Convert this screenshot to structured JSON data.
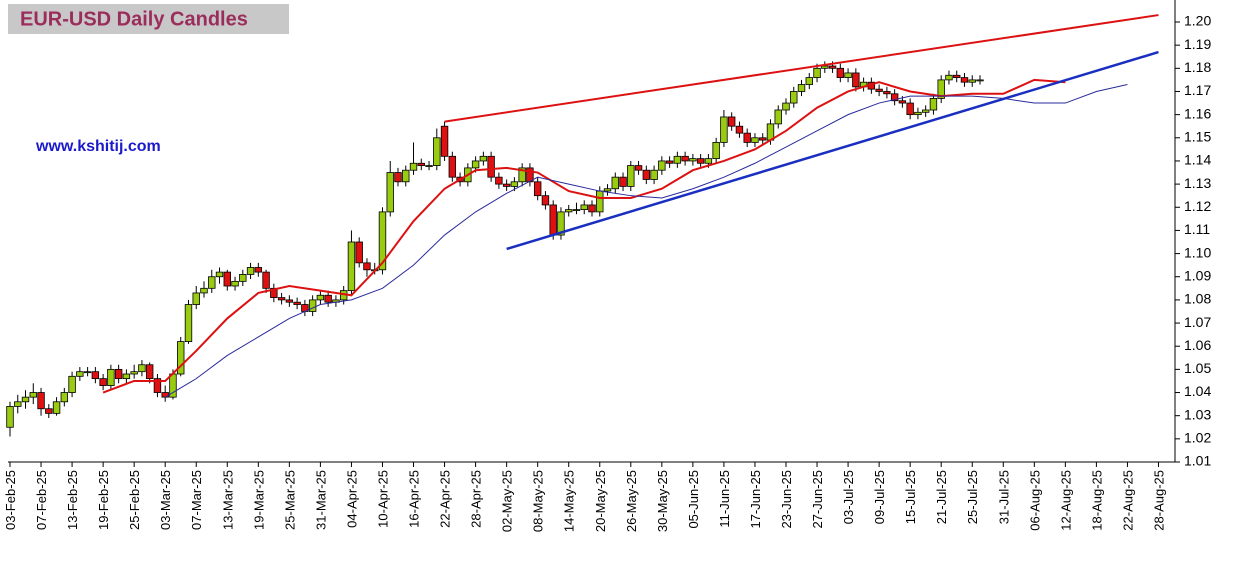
{
  "chart_data": {
    "type": "candlestick",
    "title": "EUR-USD Daily  Candles",
    "watermark": "www.kshitij.com",
    "up_color": "#99cc11",
    "down_color": "#dd1111",
    "ylim": [
      1.01,
      1.2
    ],
    "yticks": [
      1.01,
      1.02,
      1.03,
      1.04,
      1.05,
      1.06,
      1.07,
      1.08,
      1.09,
      {
        "value": 1.1,
        "label": "1.10"
      },
      1.11,
      1.12,
      1.13,
      1.14,
      1.15,
      1.16,
      1.17,
      1.18,
      1.19,
      {
        "value": 1.2,
        "label": "1.20"
      }
    ],
    "categories": [
      "03-Feb-25",
      null,
      null,
      null,
      "07-Feb-25",
      null,
      null,
      null,
      "13-Feb-25",
      null,
      null,
      null,
      "19-Feb-25",
      null,
      null,
      null,
      "25-Feb-25",
      null,
      null,
      null,
      "03-Mar-25",
      null,
      null,
      null,
      "07-Mar-25",
      null,
      null,
      null,
      "13-Mar-25",
      null,
      null,
      null,
      "19-Mar-25",
      null,
      null,
      null,
      "25-Mar-25",
      null,
      null,
      null,
      "31-Mar-25",
      null,
      null,
      null,
      "04-Apr-25",
      null,
      null,
      null,
      "10-Apr-25",
      null,
      null,
      null,
      "16-Apr-25",
      null,
      null,
      null,
      "22-Apr-25",
      null,
      null,
      null,
      "28-Apr-25",
      null,
      null,
      null,
      "02-May-25",
      null,
      null,
      null,
      "08-May-25",
      null,
      null,
      null,
      "14-May-25",
      null,
      null,
      null,
      "20-May-25",
      null,
      null,
      null,
      "26-May-25",
      null,
      null,
      null,
      "30-May-25",
      null,
      null,
      null,
      "05-Jun-25",
      null,
      null,
      null,
      "11-Jun-25",
      null,
      null,
      null,
      "17-Jun-25",
      null,
      null,
      null,
      "23-Jun-25",
      null,
      null,
      null,
      "27-Jun-25",
      null,
      null,
      null,
      "03-Jul-25",
      null,
      null,
      null,
      "09-Jul-25",
      null,
      null,
      null,
      "15-Jul-25",
      null,
      null,
      null,
      "21-Jul-25",
      null,
      null,
      null,
      "25-Jul-25",
      null,
      null,
      null,
      "31-Jul-25",
      null,
      null,
      null,
      "06-Aug-25",
      null,
      null,
      null,
      "12-Aug-25",
      null,
      null,
      null,
      "18-Aug-25",
      null,
      null,
      null,
      "22-Aug-25",
      null,
      null,
      null,
      "28-Aug-25"
    ],
    "open": [
      1.025,
      1.034,
      1.036,
      1.038,
      1.04,
      1.033,
      1.031,
      1.036,
      1.04,
      1.047,
      1.049,
      1.049,
      1.046,
      1.043,
      1.05,
      1.046,
      1.048,
      1.049,
      1.052,
      1.046,
      1.04,
      1.038,
      1.048,
      1.062,
      1.078,
      1.083,
      1.085,
      1.09,
      1.092,
      1.086,
      1.088,
      1.091,
      1.094,
      1.092,
      1.085,
      1.081,
      1.08,
      1.079,
      1.078,
      1.075,
      1.08,
      1.082,
      1.079,
      1.08,
      1.084,
      1.105,
      1.096,
      1.093,
      1.093,
      1.118,
      1.135,
      1.131,
      1.136,
      1.139,
      1.138,
      1.138,
      1.155,
      1.142,
      1.133,
      1.131,
      1.137,
      1.14,
      1.142,
      1.133,
      1.13,
      1.129,
      1.131,
      1.137,
      1.131,
      1.125,
      1.121,
      1.108,
      1.118,
      1.119,
      1.119,
      1.121,
      1.118,
      1.127,
      1.128,
      1.133,
      1.129,
      1.138,
      1.136,
      1.132,
      1.136,
      1.14,
      1.139,
      1.142,
      1.14,
      1.141,
      1.139,
      1.141,
      1.148,
      1.159,
      1.155,
      1.152,
      1.148,
      1.15,
      1.149,
      1.156,
      1.162,
      1.165,
      1.17,
      1.173,
      1.176,
      1.18,
      1.181,
      1.18,
      1.176,
      1.178,
      1.172,
      1.174,
      1.171,
      1.17,
      1.169,
      1.166,
      1.165,
      1.16,
      1.161,
      1.162,
      1.167,
      1.175,
      1.177,
      1.176,
      1.174,
      1.175,
      null,
      null,
      null,
      null,
      null,
      null,
      null,
      null,
      null,
      null,
      null,
      null,
      null,
      null,
      null,
      null,
      null,
      null,
      null,
      null,
      null,
      null,
      null
    ],
    "high": [
      1.036,
      1.039,
      1.041,
      1.044,
      1.042,
      1.035,
      1.038,
      1.042,
      1.049,
      1.051,
      1.051,
      1.051,
      1.048,
      1.052,
      1.052,
      1.05,
      1.052,
      1.054,
      1.053,
      1.048,
      1.043,
      1.05,
      1.064,
      1.08,
      1.086,
      1.088,
      1.093,
      1.094,
      1.093,
      1.09,
      1.093,
      1.096,
      1.096,
      1.093,
      1.087,
      1.083,
      1.082,
      1.081,
      1.08,
      1.082,
      1.084,
      1.084,
      1.082,
      1.086,
      1.11,
      1.107,
      1.098,
      1.096,
      1.12,
      1.14,
      1.137,
      1.138,
      1.148,
      1.141,
      1.14,
      1.154,
      1.157,
      1.144,
      1.135,
      1.139,
      1.142,
      1.144,
      1.144,
      1.135,
      1.132,
      1.133,
      1.139,
      1.139,
      1.133,
      1.127,
      1.123,
      1.12,
      1.121,
      1.122,
      1.123,
      1.123,
      1.129,
      1.13,
      1.135,
      1.135,
      1.14,
      1.14,
      1.138,
      1.138,
      1.142,
      1.142,
      1.144,
      1.144,
      1.143,
      1.143,
      1.143,
      1.15,
      1.162,
      1.161,
      1.157,
      1.154,
      1.152,
      1.152,
      1.158,
      1.164,
      1.167,
      1.172,
      1.175,
      1.178,
      1.182,
      1.183,
      1.183,
      1.182,
      1.18,
      1.18,
      1.176,
      1.176,
      1.173,
      1.172,
      1.171,
      1.168,
      1.167,
      1.163,
      1.164,
      1.169,
      1.177,
      1.179,
      1.179,
      1.178,
      1.177,
      1.177,
      null,
      null,
      null,
      null,
      null,
      null,
      null,
      null,
      null,
      null,
      null,
      null,
      null,
      null,
      null,
      null,
      null,
      null,
      null,
      null,
      null,
      null,
      null
    ],
    "low": [
      1.021,
      1.031,
      1.033,
      1.035,
      1.03,
      1.029,
      1.03,
      1.034,
      1.038,
      1.045,
      1.047,
      1.044,
      1.041,
      1.041,
      1.044,
      1.044,
      1.046,
      1.047,
      1.044,
      1.038,
      1.036,
      1.037,
      1.047,
      1.061,
      1.076,
      1.081,
      1.083,
      1.087,
      1.084,
      1.084,
      1.086,
      1.089,
      1.09,
      1.083,
      1.079,
      1.078,
      1.077,
      1.076,
      1.073,
      1.073,
      1.078,
      1.077,
      1.077,
      1.078,
      1.082,
      1.094,
      1.09,
      1.091,
      1.091,
      1.116,
      1.129,
      1.129,
      1.134,
      1.136,
      1.136,
      1.136,
      1.14,
      1.131,
      1.129,
      1.129,
      1.135,
      1.138,
      1.131,
      1.128,
      1.127,
      1.127,
      1.129,
      1.129,
      1.123,
      1.119,
      1.106,
      1.106,
      1.116,
      1.117,
      1.117,
      1.116,
      1.116,
      1.125,
      1.126,
      1.127,
      1.127,
      1.134,
      1.13,
      1.13,
      1.134,
      1.137,
      1.137,
      1.138,
      1.138,
      1.137,
      1.137,
      1.139,
      1.146,
      1.153,
      1.15,
      1.146,
      1.146,
      1.147,
      1.147,
      1.154,
      1.16,
      1.163,
      1.168,
      1.171,
      1.174,
      1.178,
      1.178,
      1.174,
      1.174,
      1.17,
      1.17,
      1.169,
      1.168,
      1.167,
      1.164,
      1.163,
      1.158,
      1.158,
      1.159,
      1.16,
      1.165,
      1.173,
      1.174,
      1.172,
      1.172,
      1.173,
      null,
      null,
      null,
      null,
      null,
      null,
      null,
      null,
      null,
      null,
      null,
      null,
      null,
      null,
      null,
      null,
      null,
      null,
      null,
      null,
      null,
      null,
      null
    ],
    "close": [
      1.034,
      1.036,
      1.038,
      1.04,
      1.033,
      1.031,
      1.036,
      1.04,
      1.047,
      1.049,
      1.049,
      1.046,
      1.043,
      1.05,
      1.046,
      1.048,
      1.049,
      1.052,
      1.046,
      1.04,
      1.038,
      1.048,
      1.062,
      1.078,
      1.083,
      1.085,
      1.09,
      1.092,
      1.086,
      1.088,
      1.091,
      1.094,
      1.092,
      1.085,
      1.081,
      1.08,
      1.079,
      1.078,
      1.075,
      1.08,
      1.082,
      1.079,
      1.08,
      1.084,
      1.105,
      1.096,
      1.093,
      1.093,
      1.118,
      1.135,
      1.131,
      1.136,
      1.139,
      1.138,
      1.138,
      1.15,
      1.142,
      1.133,
      1.131,
      1.137,
      1.14,
      1.142,
      1.133,
      1.13,
      1.129,
      1.131,
      1.137,
      1.131,
      1.125,
      1.121,
      1.108,
      1.118,
      1.119,
      1.119,
      1.121,
      1.118,
      1.127,
      1.128,
      1.133,
      1.129,
      1.138,
      1.136,
      1.132,
      1.136,
      1.14,
      1.139,
      1.142,
      1.14,
      1.141,
      1.139,
      1.141,
      1.148,
      1.159,
      1.155,
      1.152,
      1.148,
      1.15,
      1.149,
      1.156,
      1.162,
      1.165,
      1.17,
      1.173,
      1.176,
      1.18,
      1.181,
      1.18,
      1.176,
      1.178,
      1.172,
      1.174,
      1.171,
      1.17,
      1.169,
      1.166,
      1.165,
      1.16,
      1.161,
      1.162,
      1.167,
      1.175,
      1.177,
      1.176,
      1.174,
      1.175,
      1.175,
      null,
      null,
      null,
      null,
      null,
      null,
      null,
      null,
      null,
      null,
      null,
      null,
      null,
      null,
      null,
      null,
      null,
      null,
      null,
      null,
      null,
      null,
      null
    ],
    "lines": [
      {
        "color": "#dd1111",
        "width": 2,
        "x": [
          "19-Feb-25",
          "25-Feb-25",
          "03-Mar-25",
          "07-Mar-25",
          "13-Mar-25",
          "19-Mar-25",
          "25-Mar-25",
          "31-Mar-25",
          "04-Apr-25",
          "10-Apr-25",
          "16-Apr-25",
          "22-Apr-25",
          "28-Apr-25",
          "02-May-25",
          "08-May-25",
          "14-May-25",
          "20-May-25",
          "26-May-25",
          "30-May-25",
          "05-Jun-25",
          "11-Jun-25",
          "17-Jun-25",
          "23-Jun-25",
          "27-Jun-25",
          "03-Jul-25",
          "09-Jul-25",
          "15-Jul-25",
          "21-Jul-25",
          "25-Jul-25",
          "31-Jul-25",
          "06-Aug-25",
          "12-Aug-25"
        ],
        "values": [
          1.04,
          1.045,
          1.045,
          1.058,
          1.072,
          1.083,
          1.086,
          1.084,
          1.082,
          1.096,
          1.114,
          1.128,
          1.136,
          1.137,
          1.135,
          1.127,
          1.124,
          1.124,
          1.128,
          1.136,
          1.14,
          1.145,
          1.153,
          1.163,
          1.17,
          1.174,
          1.17,
          1.168,
          1.169,
          1.169,
          1.175,
          1.174
        ]
      },
      {
        "color": "#2a2a9c",
        "width": 1,
        "x": [
          "03-Mar-25",
          "07-Mar-25",
          "13-Mar-25",
          "19-Mar-25",
          "25-Mar-25",
          "31-Mar-25",
          "04-Apr-25",
          "10-Apr-25",
          "16-Apr-25",
          "22-Apr-25",
          "28-Apr-25",
          "02-May-25",
          "08-May-25",
          "14-May-25",
          "20-May-25",
          "26-May-25",
          "30-May-25",
          "05-Jun-25",
          "11-Jun-25",
          "17-Jun-25",
          "23-Jun-25",
          "27-Jun-25",
          "03-Jul-25",
          "09-Jul-25",
          "15-Jul-25",
          "21-Jul-25",
          "25-Jul-25",
          "31-Jul-25",
          "06-Aug-25",
          "12-Aug-25",
          "18-Aug-25",
          "22-Aug-25"
        ],
        "values": [
          1.038,
          1.046,
          1.056,
          1.064,
          1.072,
          1.078,
          1.08,
          1.085,
          1.095,
          1.108,
          1.118,
          1.126,
          1.133,
          1.13,
          1.127,
          1.125,
          1.124,
          1.128,
          1.133,
          1.139,
          1.146,
          1.153,
          1.16,
          1.165,
          1.168,
          1.168,
          1.168,
          1.167,
          1.165,
          1.165,
          1.17,
          1.173
        ]
      },
      {
        "color": "#dd1111",
        "width": 2,
        "x": [
          "22-Apr-25",
          "28-Aug-25"
        ],
        "values": [
          1.157,
          1.203
        ]
      },
      {
        "color": "#1a2fc0",
        "width": 2.5,
        "x": [
          "02-May-25",
          "28-Aug-25"
        ],
        "values": [
          1.102,
          1.187
        ]
      }
    ]
  }
}
